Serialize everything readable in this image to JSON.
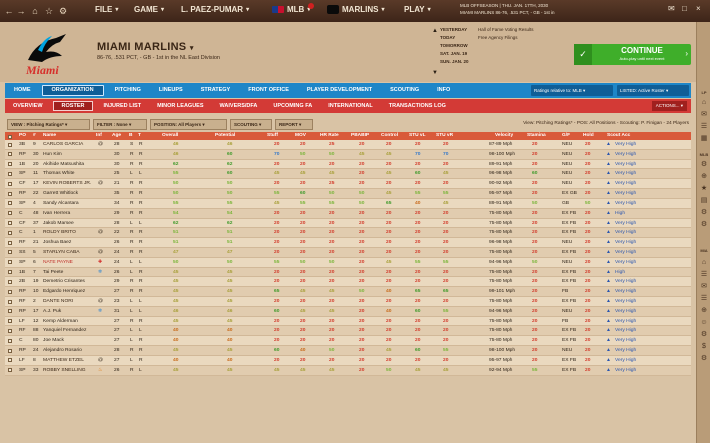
{
  "topbar": {
    "menus": [
      {
        "label": "FILE"
      },
      {
        "label": "GAME"
      },
      {
        "label": "L. PAEZ-PUMAR"
      },
      {
        "label": "MLB"
      },
      {
        "label": "MARLINS"
      },
      {
        "label": "PLAY"
      }
    ],
    "info_line1": "MLB OFFSEASON  |  THU. JAN. 17TH, 2030",
    "info_line2": "MIAMI MARLINS  86-76, .531 PCT, - GB - 1st in"
  },
  "header": {
    "team_name": "MIAMI MARLINS",
    "team_sub": "86-76, .531 PCT, - GB - 1st in the NL East Division",
    "schedule": [
      {
        "day": "YESTERDAY",
        "event": "Hall of Fame Voting Results"
      },
      {
        "day": "TODAY",
        "event": "Free Agency Filings"
      },
      {
        "day": "TOMORROW",
        "event": ""
      },
      {
        "day": "SAT. JAN. 19",
        "event": ""
      },
      {
        "day": "SUN. JAN. 20",
        "event": ""
      }
    ],
    "continue_label": "CONTINUE",
    "continue_sub": "Auto-play until next event"
  },
  "mainnav": {
    "tabs": [
      "HOME",
      "ORGANIZATION",
      "PITCHING",
      "LINEUPS",
      "STRATEGY",
      "FRONT OFFICE",
      "PLAYER DEVELOPMENT",
      "SCOUTING",
      "INFO"
    ],
    "active": "ORGANIZATION",
    "ratings_relative": "Ratings relative to: MLB",
    "listed": "LISTED: Active Roster"
  },
  "subnav": {
    "tabs": [
      "OVERVIEW",
      "ROSTER",
      "INJURED LIST",
      "MINOR LEAGUES",
      "WAIVERS/DFA",
      "UPCOMING FA",
      "INTERNATIONAL",
      "TRANSACTIONS LOG"
    ],
    "active": "ROSTER",
    "actions": "ACTIONS..."
  },
  "filters": {
    "view": "VIEW : Pitching Ratings*",
    "filter": "FILTER : None",
    "position": "POSITION: All Players",
    "scouting": "SCOUTING",
    "report": "REPORT",
    "view_info": "View: Pitching Ratings* - POS: All Positions - Scouting: P. Finigan - 24 Players"
  },
  "table": {
    "headers": [
      "PO",
      "#",
      "Name",
      "Inf",
      "Age",
      "B",
      "T",
      "Overall",
      "Potential",
      "Stuff",
      "MOV",
      "HR Rate",
      "PBABIP",
      "Control",
      "STU vL",
      "STU vR",
      "Velocity",
      "Stamina",
      "G/F",
      "Hold",
      "Scout Acc"
    ],
    "rows": [
      {
        "po": "3B",
        "num": "9",
        "name": "CARLOS GARCIA",
        "inf": "@",
        "age": "28",
        "b": "S",
        "t": "R",
        "ovr": "46",
        "pot": "46",
        "stuff": "20",
        "mov": "20",
        "hr": "25",
        "pbabip": "20",
        "ctrl": "20",
        "stul": "20",
        "stur": "20",
        "velo": "87-89 Mph",
        "stam": "20",
        "gf": "NEU",
        "hold": "20",
        "acc": "Very High"
      },
      {
        "po": "RP",
        "num": "30",
        "name": "Hun Kim",
        "inf": "",
        "age": "30",
        "b": "R",
        "t": "R",
        "ovr": "46",
        "pot": "60",
        "stuff": "70",
        "mov": "50",
        "hr": "50",
        "pbabip": "45",
        "ctrl": "45",
        "stul": "70",
        "stur": "70",
        "velo": "98-100 Mph",
        "stam": "20",
        "gf": "NEU",
        "hold": "20",
        "acc": "Very High"
      },
      {
        "po": "1B",
        "num": "20",
        "name": "Akihide Matsushita",
        "inf": "",
        "age": "30",
        "b": "R",
        "t": "R",
        "ovr": "62",
        "pot": "62",
        "stuff": "20",
        "mov": "20",
        "hr": "20",
        "pbabip": "20",
        "ctrl": "20",
        "stul": "20",
        "stur": "20",
        "velo": "89-91 Mph",
        "stam": "20",
        "gf": "NEU",
        "hold": "20",
        "acc": "Very High"
      },
      {
        "po": "SP",
        "num": "11",
        "name": "Thomas White",
        "inf": "",
        "age": "25",
        "b": "L",
        "t": "L",
        "ovr": "55",
        "pot": "60",
        "stuff": "45",
        "mov": "45",
        "hr": "45",
        "pbabip": "20",
        "ctrl": "45",
        "stul": "60",
        "stur": "45",
        "velo": "96-98 Mph",
        "stam": "60",
        "gf": "NEU",
        "hold": "20",
        "acc": "Very High"
      },
      {
        "po": "CF",
        "num": "17",
        "name": "KEVIN ROBERTS JR.",
        "inf": "@",
        "age": "21",
        "b": "R",
        "t": "R",
        "ovr": "50",
        "pot": "50",
        "stuff": "20",
        "mov": "20",
        "hr": "25",
        "pbabip": "20",
        "ctrl": "20",
        "stul": "20",
        "stur": "20",
        "velo": "90-92 Mph",
        "stam": "20",
        "gf": "NEU",
        "hold": "20",
        "acc": "Very High"
      },
      {
        "po": "RP",
        "num": "22",
        "name": "Garrett Whitlock",
        "inf": "",
        "age": "35",
        "b": "R",
        "t": "R",
        "ovr": "50",
        "pot": "50",
        "stuff": "55",
        "mov": "60",
        "hr": "50",
        "pbabip": "50",
        "ctrl": "45",
        "stul": "55",
        "stur": "55",
        "velo": "95-97 Mph",
        "stam": "20",
        "gf": "EX GB",
        "hold": "20",
        "acc": "Very High"
      },
      {
        "po": "SP",
        "num": "4",
        "name": "Sandy Alcantara",
        "inf": "",
        "age": "34",
        "b": "R",
        "t": "R",
        "ovr": "55",
        "pot": "55",
        "stuff": "45",
        "mov": "55",
        "hr": "55",
        "pbabip": "50",
        "ctrl": "65",
        "stul": "40",
        "stur": "45",
        "velo": "89-91 Mph",
        "stam": "50",
        "gf": "GB",
        "hold": "50",
        "acc": "Very High"
      },
      {
        "po": "C",
        "num": "48",
        "name": "Ivan Herrera",
        "inf": "",
        "age": "29",
        "b": "R",
        "t": "R",
        "ovr": "54",
        "pot": "54",
        "stuff": "20",
        "mov": "20",
        "hr": "20",
        "pbabip": "20",
        "ctrl": "20",
        "stul": "20",
        "stur": "20",
        "velo": "75-80 Mph",
        "stam": "20",
        "gf": "EX FB",
        "hold": "20",
        "acc": "High"
      },
      {
        "po": "CF",
        "num": "37",
        "name": "Jakob Marsee",
        "inf": "",
        "age": "28",
        "b": "L",
        "t": "L",
        "ovr": "62",
        "pot": "62",
        "stuff": "20",
        "mov": "20",
        "hr": "20",
        "pbabip": "20",
        "ctrl": "20",
        "stul": "20",
        "stur": "20",
        "velo": "75-80 Mph",
        "stam": "20",
        "gf": "EX FB",
        "hold": "20",
        "acc": "Very High"
      },
      {
        "po": "C",
        "num": "1",
        "name": "ROLDY BRITO",
        "inf": "@",
        "age": "22",
        "b": "R",
        "t": "R",
        "ovr": "51",
        "pot": "51",
        "stuff": "20",
        "mov": "20",
        "hr": "20",
        "pbabip": "20",
        "ctrl": "20",
        "stul": "20",
        "stur": "20",
        "velo": "75-80 Mph",
        "stam": "20",
        "gf": "EX FB",
        "hold": "20",
        "acc": "Very High"
      },
      {
        "po": "RF",
        "num": "21",
        "name": "Joshua Baez",
        "inf": "",
        "age": "26",
        "b": "R",
        "t": "R",
        "ovr": "51",
        "pot": "51",
        "stuff": "20",
        "mov": "20",
        "hr": "20",
        "pbabip": "20",
        "ctrl": "20",
        "stul": "20",
        "stur": "20",
        "velo": "96-98 Mph",
        "stam": "20",
        "gf": "NEU",
        "hold": "20",
        "acc": "Very High"
      },
      {
        "po": "SS",
        "num": "5",
        "name": "STARLYN CABA",
        "inf": "@",
        "age": "24",
        "b": "R",
        "t": "R",
        "ovr": "47",
        "pot": "47",
        "stuff": "20",
        "mov": "20",
        "hr": "20",
        "pbabip": "20",
        "ctrl": "20",
        "stul": "20",
        "stur": "20",
        "velo": "75-80 Mph",
        "stam": "20",
        "gf": "EX FB",
        "hold": "20",
        "acc": "Very High"
      },
      {
        "po": "SP",
        "num": "6",
        "name": "NATE PAYNE",
        "inf": "+",
        "age": "24",
        "b": "L",
        "t": "L",
        "ovr": "50",
        "pot": "50",
        "stuff": "55",
        "mov": "50",
        "hr": "50",
        "pbabip": "20",
        "ctrl": "45",
        "stul": "55",
        "stur": "55",
        "velo": "94-96 Mph",
        "stam": "50",
        "gf": "NEU",
        "hold": "20",
        "acc": "Very High"
      },
      {
        "po": "1B",
        "num": "7",
        "name": "Tai Peete",
        "inf": "*",
        "age": "26",
        "b": "L",
        "t": "R",
        "ovr": "45",
        "pot": "45",
        "stuff": "20",
        "mov": "20",
        "hr": "20",
        "pbabip": "20",
        "ctrl": "20",
        "stul": "20",
        "stur": "20",
        "velo": "75-80 Mph",
        "stam": "20",
        "gf": "EX FB",
        "hold": "20",
        "acc": "High"
      },
      {
        "po": "2B",
        "num": "19",
        "name": "Demetrio Crisantes",
        "inf": "",
        "age": "29",
        "b": "R",
        "t": "R",
        "ovr": "45",
        "pot": "45",
        "stuff": "20",
        "mov": "20",
        "hr": "20",
        "pbabip": "20",
        "ctrl": "20",
        "stul": "20",
        "stur": "20",
        "velo": "75-80 Mph",
        "stam": "20",
        "gf": "EX FB",
        "hold": "20",
        "acc": "Very High"
      },
      {
        "po": "RP",
        "num": "10",
        "name": "Edgardo Henriquez",
        "inf": "",
        "age": "27",
        "b": "R",
        "t": "R",
        "ovr": "45",
        "pot": "45",
        "stuff": "65",
        "mov": "45",
        "hr": "45",
        "pbabip": "50",
        "ctrl": "40",
        "stul": "65",
        "stur": "65",
        "velo": "99-101 Mph",
        "stam": "20",
        "gf": "FB",
        "hold": "20",
        "acc": "Very High"
      },
      {
        "po": "RF",
        "num": "2",
        "name": "DANTE NORI",
        "inf": "@",
        "age": "23",
        "b": "L",
        "t": "L",
        "ovr": "45",
        "pot": "45",
        "stuff": "20",
        "mov": "20",
        "hr": "20",
        "pbabip": "20",
        "ctrl": "20",
        "stul": "20",
        "stur": "20",
        "velo": "75-80 Mph",
        "stam": "20",
        "gf": "EX FB",
        "hold": "20",
        "acc": "Very High"
      },
      {
        "po": "RP",
        "num": "17",
        "name": "A.J. Puk",
        "inf": "*",
        "age": "31",
        "b": "L",
        "t": "L",
        "ovr": "46",
        "pot": "46",
        "stuff": "60",
        "mov": "45",
        "hr": "45",
        "pbabip": "20",
        "ctrl": "40",
        "stul": "60",
        "stur": "55",
        "velo": "94-96 Mph",
        "stam": "20",
        "gf": "NEU",
        "hold": "20",
        "acc": "Very High"
      },
      {
        "po": "LF",
        "num": "12",
        "name": "Kemp Alderman",
        "inf": "",
        "age": "27",
        "b": "R",
        "t": "R",
        "ovr": "45",
        "pot": "45",
        "stuff": "20",
        "mov": "20",
        "hr": "20",
        "pbabip": "20",
        "ctrl": "20",
        "stul": "20",
        "stur": "20",
        "velo": "75-80 Mph",
        "stam": "20",
        "gf": "FB",
        "hold": "20",
        "acc": "Very High"
      },
      {
        "po": "RF",
        "num": "88",
        "name": "Yanquiel Fernandez",
        "inf": "",
        "age": "27",
        "b": "L",
        "t": "L",
        "ovr": "40",
        "pot": "40",
        "stuff": "20",
        "mov": "20",
        "hr": "20",
        "pbabip": "20",
        "ctrl": "20",
        "stul": "20",
        "stur": "20",
        "velo": "75-80 Mph",
        "stam": "20",
        "gf": "EX FB",
        "hold": "20",
        "acc": "Very High"
      },
      {
        "po": "C",
        "num": "80",
        "name": "Joe Mack",
        "inf": "",
        "age": "27",
        "b": "L",
        "t": "R",
        "ovr": "40",
        "pot": "40",
        "stuff": "20",
        "mov": "20",
        "hr": "20",
        "pbabip": "20",
        "ctrl": "20",
        "stul": "20",
        "stur": "20",
        "velo": "75-80 Mph",
        "stam": "20",
        "gf": "EX FB",
        "hold": "20",
        "acc": "Very High"
      },
      {
        "po": "RP",
        "num": "24",
        "name": "Alejandro Rosario",
        "inf": "",
        "age": "28",
        "b": "R",
        "t": "R",
        "ovr": "45",
        "pot": "45",
        "stuff": "60",
        "mov": "40",
        "hr": "50",
        "pbabip": "20",
        "ctrl": "45",
        "stul": "60",
        "stur": "55",
        "velo": "98-100 Mph",
        "stam": "20",
        "gf": "NEU",
        "hold": "20",
        "acc": "Very High"
      },
      {
        "po": "LF",
        "num": "8",
        "name": "MATTHEW ETZEL",
        "inf": "@",
        "age": "27",
        "b": "L",
        "t": "R",
        "ovr": "40",
        "pot": "40",
        "stuff": "20",
        "mov": "20",
        "hr": "20",
        "pbabip": "20",
        "ctrl": "20",
        "stul": "20",
        "stur": "20",
        "velo": "95-97 Mph",
        "stam": "20",
        "gf": "EX FB",
        "hold": "20",
        "acc": "Very High"
      },
      {
        "po": "SP",
        "num": "33",
        "name": "ROBBY SNELLING",
        "inf": "!",
        "age": "26",
        "b": "R",
        "t": "L",
        "ovr": "45",
        "pot": "45",
        "stuff": "45",
        "mov": "45",
        "hr": "45",
        "pbabip": "20",
        "ctrl": "50",
        "stul": "45",
        "stur": "45",
        "velo": "92-94 Mph",
        "stam": "55",
        "gf": "EX FB",
        "hold": "20",
        "acc": "Very High"
      }
    ]
  }
}
